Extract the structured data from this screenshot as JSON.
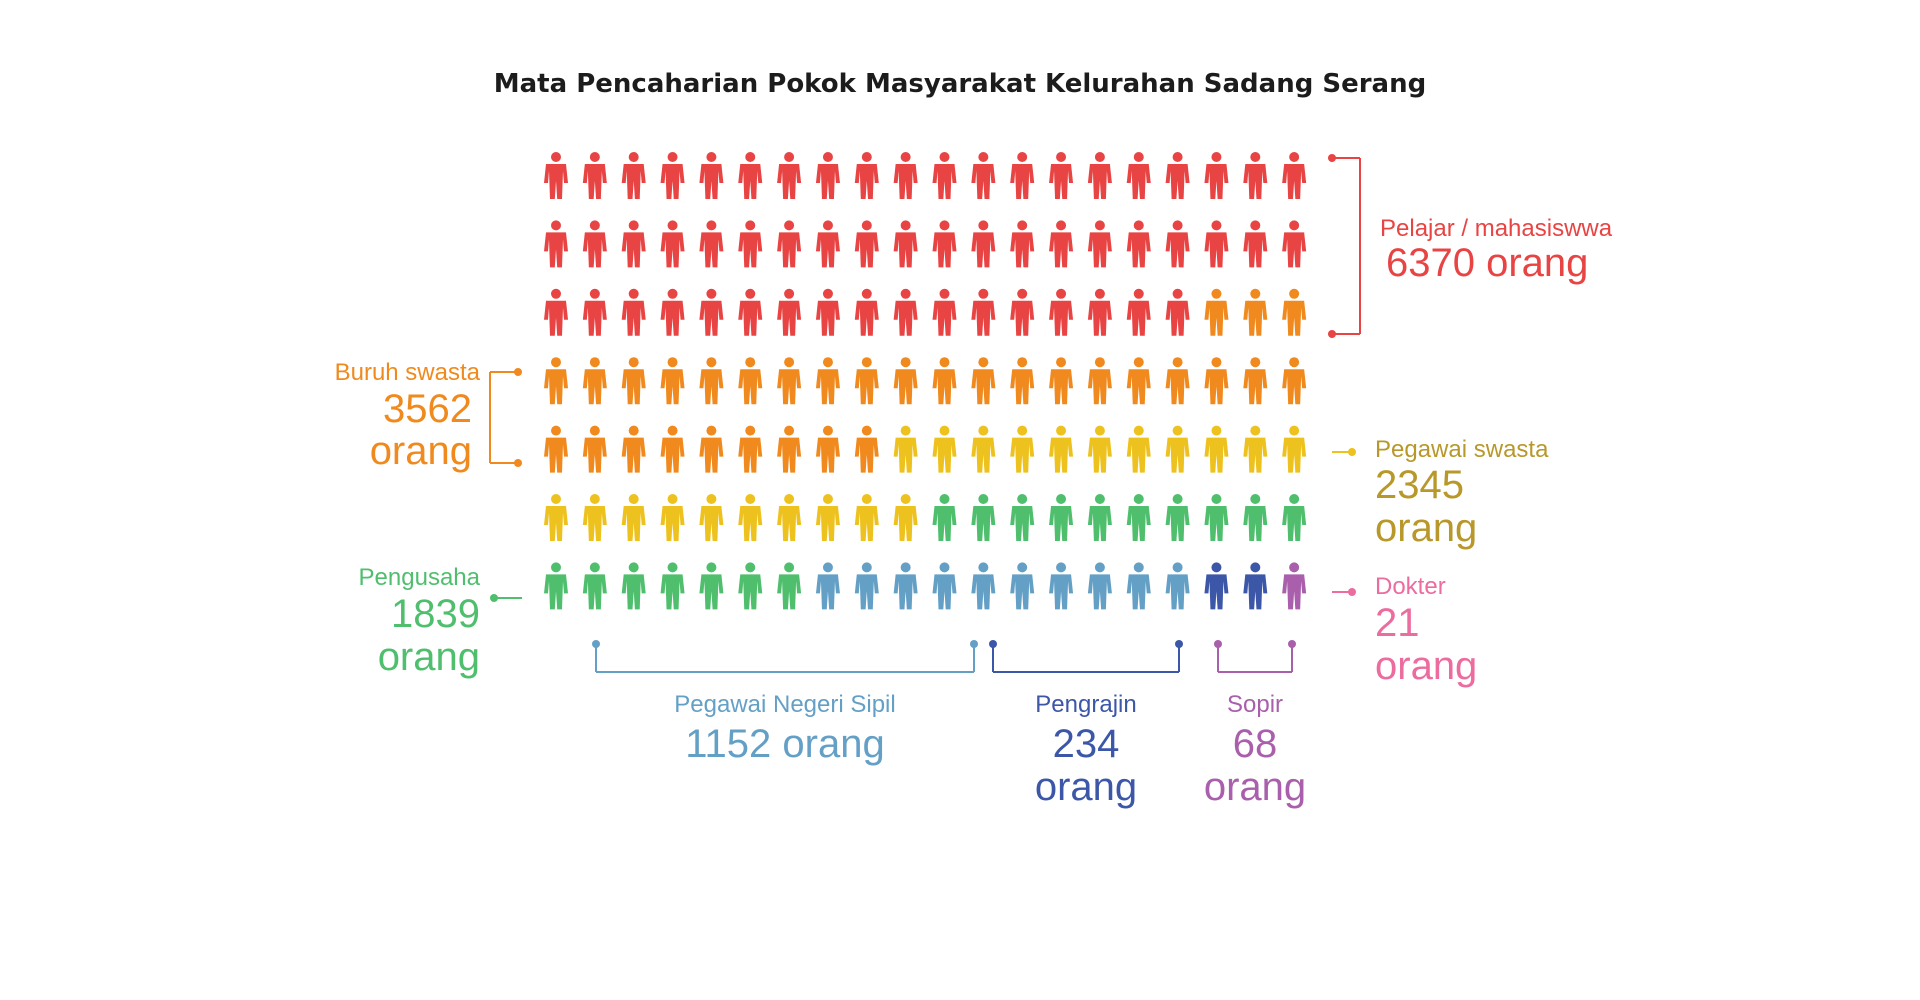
{
  "chart_data": {
    "type": "pictogram",
    "title": "Mata Pencaharian Pokok Masyarakat Kelurahan Sadang Serang",
    "icons_per_row": 20,
    "rows": 7,
    "categories": [
      {
        "name": "Pelajar / mahasiswwa",
        "value": 6370,
        "value_text": "6370 orang",
        "color": "#e84444"
      },
      {
        "name": "Buruh swasta",
        "value": 3562,
        "value_text": "3562",
        "unit": "orang",
        "color": "#f08a1e"
      },
      {
        "name": "Pegawai swasta",
        "value": 2345,
        "value_text": "2345",
        "unit": "orang",
        "color": "#eec21e"
      },
      {
        "name": "Pengusaha",
        "value": 1839,
        "value_text": "1839",
        "unit": "orang",
        "color": "#4fbf6e"
      },
      {
        "name": "Pegawai Negeri Sipil",
        "value": 1152,
        "value_text": "1152 orang",
        "color": "#64a0c6"
      },
      {
        "name": "Pengrajin",
        "value": 234,
        "value_text": "234",
        "unit": "orang",
        "color": "#3d57a8"
      },
      {
        "name": "Sopir",
        "value": 68,
        "value_text": "68",
        "unit": "orang",
        "color": "#a95fab"
      },
      {
        "name": "Dokter",
        "value": 21,
        "value_text": "21",
        "unit": "orang",
        "color": "#ec6c9f"
      }
    ],
    "grid": false,
    "legend": "none"
  }
}
